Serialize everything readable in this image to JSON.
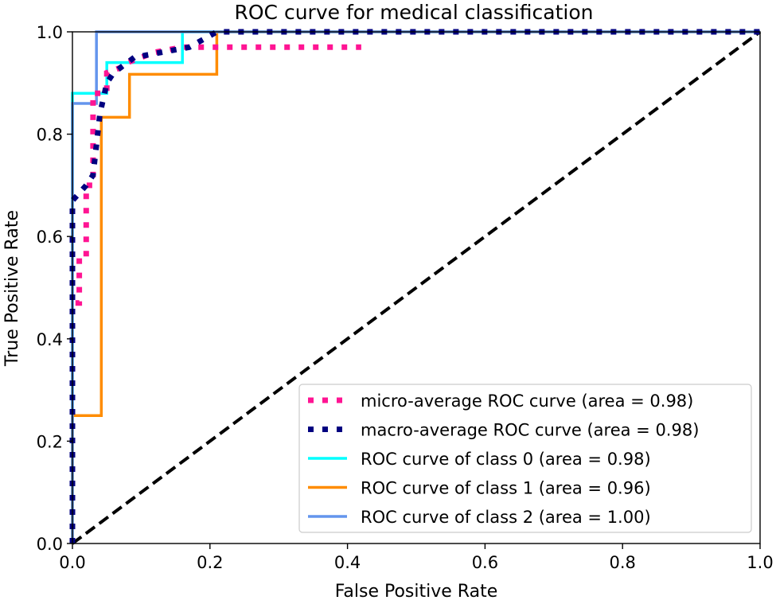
{
  "chart_data": {
    "type": "line",
    "title": "ROC curve for medical classification",
    "xlabel": "False Positive Rate",
    "ylabel": "True Positive Rate",
    "xlim": [
      0.0,
      1.0
    ],
    "ylim": [
      0.0,
      1.0
    ],
    "xticks": [
      "0.0",
      "0.2",
      "0.4",
      "0.6",
      "0.8",
      "1.0"
    ],
    "yticks": [
      "0.0",
      "0.2",
      "0.4",
      "0.6",
      "0.8",
      "1.0"
    ],
    "grid": false,
    "legend_position": "lower-right",
    "series": [
      {
        "name": "micro-average ROC curve (area = 0.98)",
        "color": "#ff1493",
        "style": "dotted",
        "x": [
          0.0,
          0.0,
          0.01,
          0.01,
          0.02,
          0.02,
          0.03,
          0.03,
          0.05,
          0.05,
          0.07,
          0.08,
          0.1,
          0.12,
          0.16,
          0.2,
          0.42
        ],
        "y": [
          0.0,
          0.47,
          0.47,
          0.56,
          0.56,
          0.7,
          0.7,
          0.88,
          0.88,
          0.92,
          0.93,
          0.94,
          0.95,
          0.96,
          0.97,
          0.97,
          0.97
        ]
      },
      {
        "name": "macro-average ROC curve (area = 0.98)",
        "color": "#000080",
        "style": "dotted",
        "x": [
          0.0,
          0.0,
          0.02,
          0.03,
          0.04,
          0.05,
          0.06,
          0.09,
          0.13,
          0.17,
          0.21,
          0.3,
          0.5,
          0.7,
          1.0
        ],
        "y": [
          0.0,
          0.67,
          0.7,
          0.72,
          0.84,
          0.9,
          0.92,
          0.95,
          0.96,
          0.97,
          1.0,
          1.0,
          1.0,
          1.0,
          1.0
        ]
      },
      {
        "name": "ROC curve of class 0 (area = 0.98)",
        "color": "#00ffff",
        "style": "solid",
        "x": [
          0.0,
          0.0,
          0.05,
          0.05,
          0.16,
          0.16,
          1.0
        ],
        "y": [
          0.0,
          0.88,
          0.88,
          0.94,
          0.94,
          1.0,
          1.0
        ]
      },
      {
        "name": "ROC curve of class 1 (area = 0.96)",
        "color": "#ff8c00",
        "style": "solid",
        "x": [
          0.0,
          0.0,
          0.042,
          0.042,
          0.083,
          0.083,
          0.21,
          0.21,
          1.0
        ],
        "y": [
          0.0,
          0.25,
          0.25,
          0.833,
          0.833,
          0.917,
          0.917,
          1.0,
          1.0
        ]
      },
      {
        "name": "ROC curve of class 2 (area = 1.00)",
        "color": "#6495ed",
        "style": "solid",
        "x": [
          0.0,
          0.0,
          0.035,
          0.035,
          1.0
        ],
        "y": [
          0.0,
          0.86,
          0.86,
          1.0,
          1.0
        ]
      },
      {
        "name": "chance",
        "color": "#000000",
        "style": "dashed",
        "show_in_legend": false,
        "x": [
          0.0,
          1.0
        ],
        "y": [
          0.0,
          1.0
        ]
      }
    ]
  }
}
